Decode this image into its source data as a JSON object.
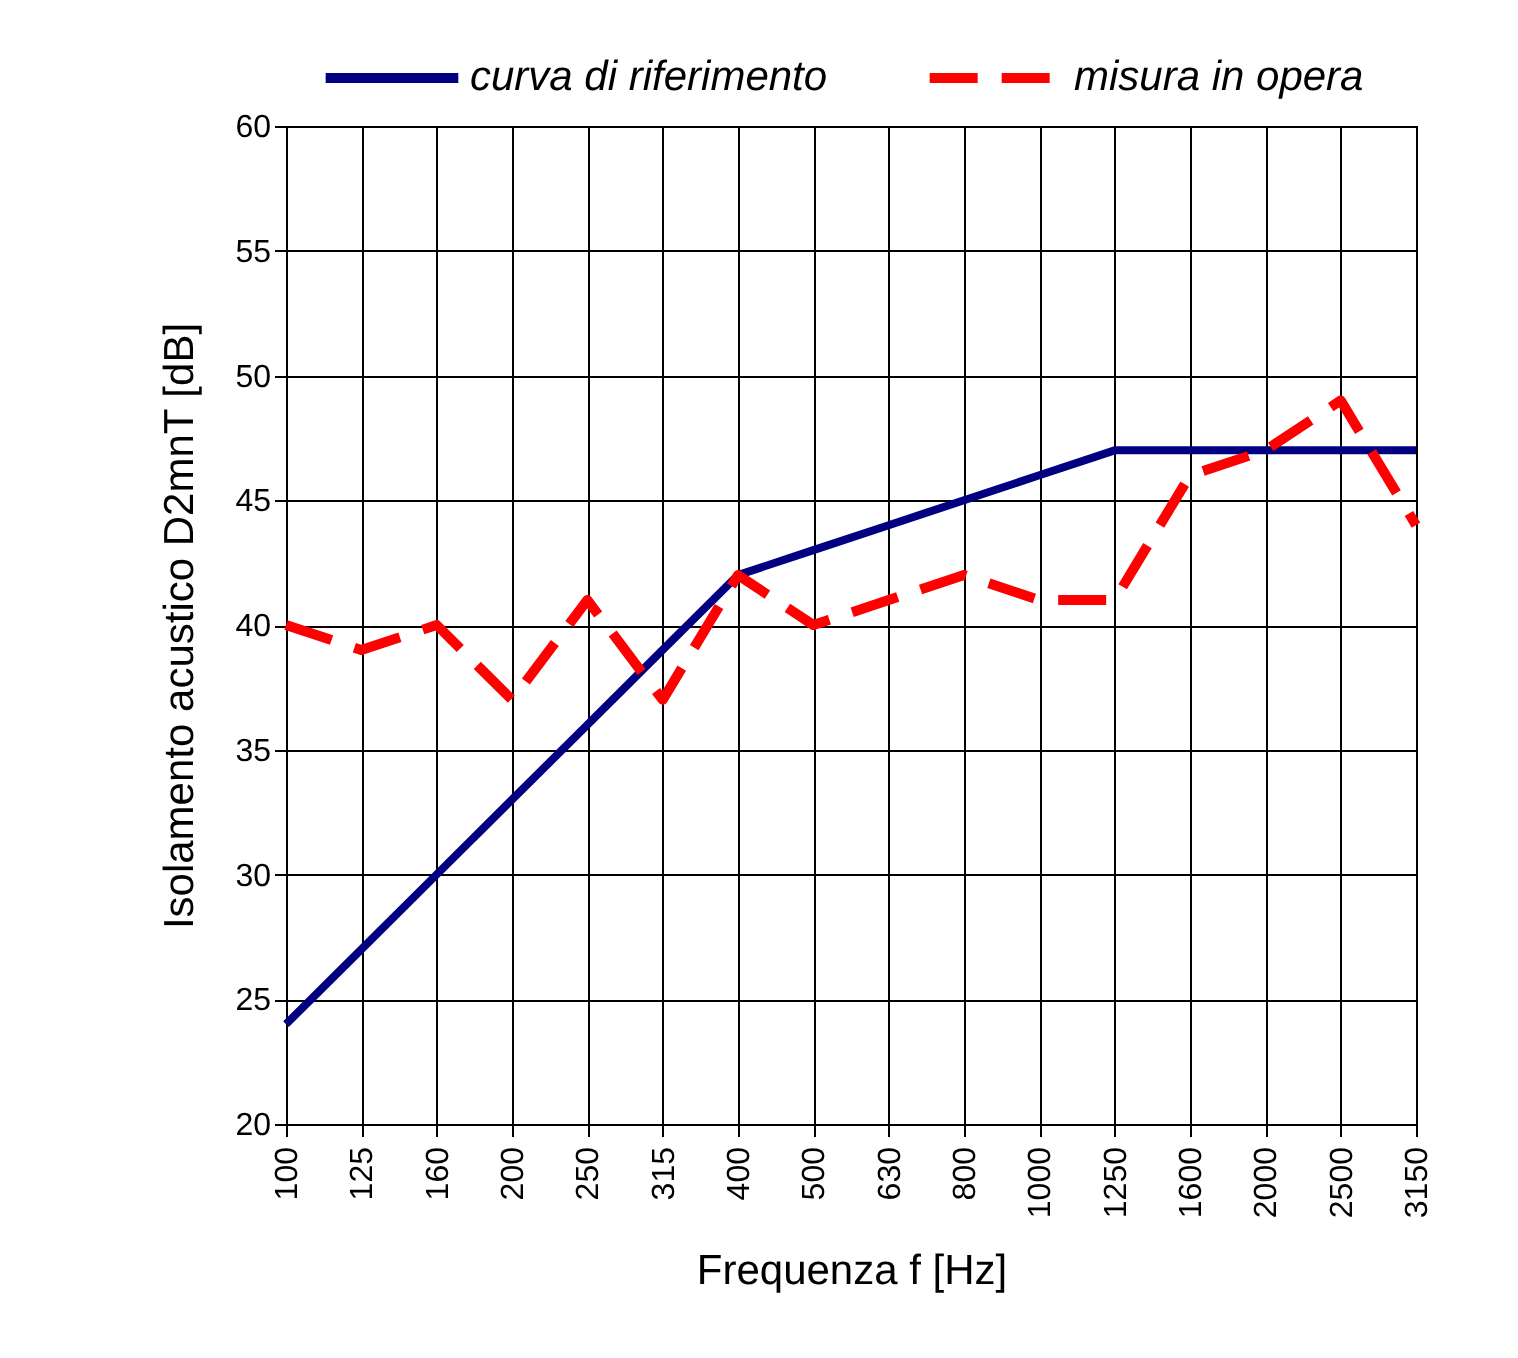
{
  "chart_data": {
    "type": "line",
    "xlabel": "Frequenza f [Hz]",
    "ylabel": "Isolamento acustico D2mnT [dB]",
    "categories": [
      "100",
      "125",
      "160",
      "200",
      "250",
      "315",
      "400",
      "500",
      "630",
      "800",
      "1000",
      "1250",
      "1600",
      "2000",
      "2500",
      "3150"
    ],
    "series": [
      {
        "name": "curva di riferimento",
        "color": "#000080",
        "line_style": "solid",
        "values": [
          24,
          27,
          30,
          33,
          36,
          39,
          42,
          43,
          44,
          45,
          46,
          47,
          47,
          47,
          47,
          47
        ]
      },
      {
        "name": "misura in opera",
        "color": "#ff0000",
        "line_style": "dashed",
        "values": [
          40,
          39,
          40,
          37,
          41,
          37,
          42,
          40,
          41,
          42,
          41,
          41,
          46,
          47,
          49,
          44
        ]
      }
    ],
    "ylim": [
      20,
      60
    ],
    "yticks": [
      20,
      25,
      30,
      35,
      40,
      45,
      50,
      55,
      60
    ],
    "grid": true,
    "legend": "top"
  }
}
